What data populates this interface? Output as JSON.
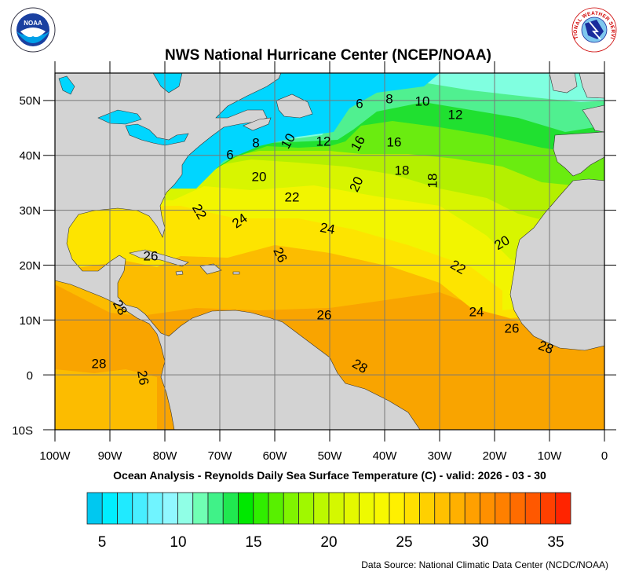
{
  "header": {
    "title": "NWS National Hurricane Center (NCEP/NOAA)",
    "left_logo": "noaa-logo",
    "right_logo": "nws-logo",
    "left_logo_text": "NOAA",
    "right_logo_text": "NATIONAL WEATHER SERVICE"
  },
  "map": {
    "subtitle": "Ocean Analysis - Reynolds Daily Sea Surface Temperature (C) - valid: 2026 - 03 - 30",
    "lon_labels": [
      "100W",
      "90W",
      "80W",
      "70W",
      "60W",
      "50W",
      "40W",
      "30W",
      "20W",
      "10W",
      "0"
    ],
    "lat_labels": [
      "50N",
      "40N",
      "30N",
      "20N",
      "10N",
      "0",
      "10S"
    ],
    "lon_range": [
      -100,
      0
    ],
    "lat_range": [
      -10,
      55
    ],
    "grid": true,
    "land_color": "#d3d3d3",
    "contour_labels": [
      "6",
      "8",
      "10",
      "12",
      "6",
      "8",
      "10",
      "12",
      "16",
      "16",
      "18",
      "18",
      "20",
      "22",
      "20",
      "22",
      "24",
      "24",
      "26",
      "26",
      "22",
      "20",
      "24",
      "26",
      "26",
      "28",
      "28",
      "28",
      "26",
      "28"
    ]
  },
  "colorbar": {
    "min": 4,
    "max": 36,
    "tick_labels": [
      "5",
      "10",
      "15",
      "20",
      "25",
      "30",
      "35"
    ],
    "colors": [
      "#00c8f0",
      "#00eeff",
      "#20eaff",
      "#48eeff",
      "#70f4ff",
      "#90f8ff",
      "#90ffe6",
      "#70ffb4",
      "#40f288",
      "#20e850",
      "#00e800",
      "#30ee00",
      "#58f000",
      "#80f400",
      "#a0f800",
      "#bcf800",
      "#d4f800",
      "#e4f800",
      "#eefa00",
      "#f8f800",
      "#fff000",
      "#ffe000",
      "#ffd000",
      "#ffc000",
      "#ffb000",
      "#ffa000",
      "#ff9000",
      "#ff8000",
      "#ff6c00",
      "#ff5800",
      "#ff4000",
      "#ff2400"
    ]
  },
  "footer": {
    "source": "Data Source: National Climatic Data Center (NCDC/NOAA)"
  }
}
